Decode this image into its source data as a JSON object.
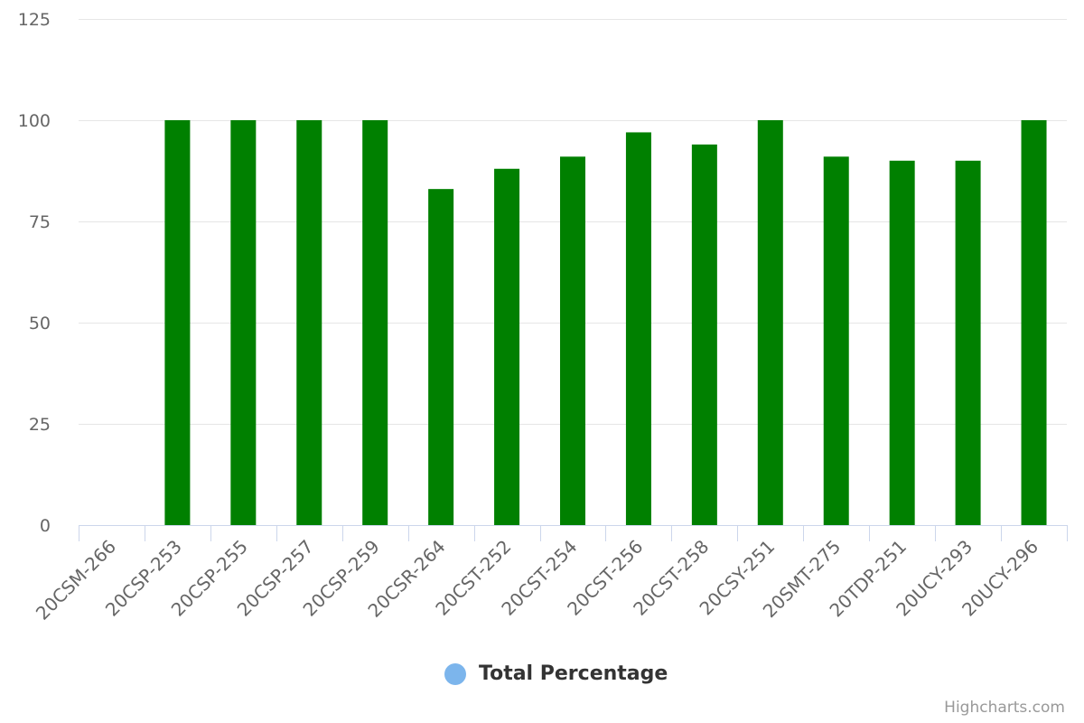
{
  "chart_data": {
    "type": "bar",
    "categories": [
      "20CSM-266",
      "20CSP-253",
      "20CSP-255",
      "20CSP-257",
      "20CSP-259",
      "20CSR-264",
      "20CST-252",
      "20CST-254",
      "20CST-256",
      "20CST-258",
      "20CSY-251",
      "20SMT-275",
      "20TDP-251",
      "20UCY-293",
      "20UCY-296"
    ],
    "series": [
      {
        "name": "Total Percentage",
        "values": [
          0,
          100,
          100,
          100,
          100,
          83,
          88,
          91,
          97,
          94,
          100,
          91,
          90,
          90,
          100
        ],
        "bar_color": "#008000",
        "legend_color": "#7cb5ec"
      }
    ],
    "yticks": [
      0,
      25,
      50,
      75,
      100,
      125
    ],
    "ylim": [
      0,
      125
    ],
    "grid": true,
    "legend": "bottom-center",
    "title": "",
    "xlabel": "",
    "ylabel": ""
  },
  "legend": {
    "label": "Total Percentage"
  },
  "credits": "Highcharts.com"
}
